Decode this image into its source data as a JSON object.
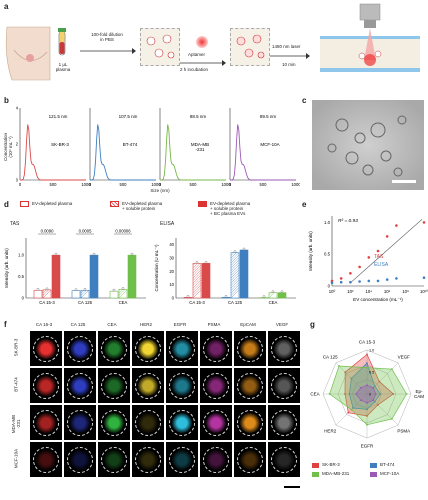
{
  "panels": {
    "a": "a",
    "b": "b",
    "c": "c",
    "d": "d",
    "e": "e",
    "f": "f",
    "g": "g"
  },
  "a": {
    "plasma": "1 μL\nplasma",
    "dilution": "100-fold dilution\nin PBS",
    "aptamer": "Aptamer",
    "incubation": "2 h incubation",
    "laser": "1480 nm laser",
    "time": "10 min"
  },
  "b": {
    "ylabel": "Concentration\n(10⁹ mL⁻¹)",
    "xlabel": "Size (nm)",
    "yticks": [
      "0",
      "2",
      "4"
    ],
    "xticks": [
      "0",
      "500",
      "1000"
    ],
    "series": [
      {
        "name": "SK-BR-3",
        "peak": "121.5 nm",
        "color": "#d94a4a"
      },
      {
        "name": "BT-474",
        "peak": "107.5 nm",
        "color": "#3f7fc0"
      },
      {
        "name": "MDA-MB\n-231",
        "peak": "88.5 nm",
        "color": "#7ab648"
      },
      {
        "name": "MCF-10A",
        "peak": "89.5 nm",
        "color": "#9b59b6"
      }
    ]
  },
  "legend_d": {
    "l1": "EV-depleted plasma",
    "l2": "EV-depleted plasma\n+ soluble protein",
    "l3": "EV-depleted plasma\n+ soluble protein\n+ BC plasma EVs"
  },
  "d_tas": {
    "title": "TAS",
    "ylabel": "Intensity (arb. units)",
    "yticks": [
      "0",
      "0.5",
      "1.0"
    ],
    "categories": [
      "CA 15-3",
      "CA 125",
      "CEA"
    ],
    "pvalues": [
      "0.0090",
      "0.0005",
      "0.00006"
    ]
  },
  "d_elisa": {
    "title": "ELISA",
    "ylabel": "Concentration (U mL⁻¹)",
    "yticks": [
      "0",
      "10",
      "20",
      "30",
      "40"
    ],
    "categories": [
      "CA 15-3",
      "CA 125",
      "CEA"
    ]
  },
  "chart_data": [
    {
      "type": "bar",
      "title": "TAS",
      "ylabel": "Intensity (arb. units)",
      "ylim": [
        0,
        1.4
      ],
      "categories": [
        "CA 15-3",
        "CA 125",
        "CEA"
      ],
      "series": [
        {
          "name": "EV-depleted plasma",
          "values": [
            0.18,
            0.17,
            0.16
          ]
        },
        {
          "name": "EV-depleted plasma + soluble protein",
          "values": [
            0.19,
            0.18,
            0.2
          ]
        },
        {
          "name": "EV-depleted plasma + soluble protein + BC plasma EVs",
          "values": [
            1.0,
            1.0,
            1.0
          ]
        }
      ]
    },
    {
      "type": "bar",
      "title": "ELISA",
      "ylabel": "Concentration (U mL⁻¹)",
      "ylim": [
        0,
        45
      ],
      "categories": [
        "CA 15-3",
        "CA 125",
        "CEA"
      ],
      "series": [
        {
          "name": "EV-depleted plasma",
          "values": [
            0.5,
            0.5,
            0.3
          ]
        },
        {
          "name": "EV-depleted plasma + soluble protein",
          "values": [
            26,
            34,
            4
          ]
        },
        {
          "name": "EV-depleted plasma + soluble protein + BC plasma EVs",
          "values": [
            26,
            36,
            4
          ]
        }
      ]
    },
    {
      "type": "scatter",
      "xlabel": "EV concentration (mL⁻¹)",
      "ylabel": "Intensity (arb. units)",
      "annotation": "R² = 0.93",
      "ylim": [
        0,
        1.1
      ],
      "xscale": "log",
      "series": [
        {
          "name": "TAS",
          "x": [
            1,
            10,
            100,
            1000,
            10000,
            100000,
            1000000,
            10000000,
            10000000000
          ],
          "y": [
            0.08,
            0.12,
            0.2,
            0.3,
            0.45,
            0.55,
            0.78,
            0.95,
            1.0
          ]
        },
        {
          "name": "ELISA",
          "x": [
            1,
            10,
            100,
            1000,
            10000,
            100000,
            1000000,
            10000000,
            10000000000
          ],
          "y": [
            0.05,
            0.06,
            0.06,
            0.07,
            0.08,
            0.08,
            0.1,
            0.12,
            0.13
          ]
        }
      ]
    },
    {
      "type": "radar",
      "axes": [
        "CA 15-3",
        "VEGF",
        "Ep-CAM",
        "PSMA",
        "EGFR",
        "HER2",
        "CEA",
        "CA 125"
      ],
      "rticks": [
        "0",
        "0.5",
        "1.0"
      ],
      "series": [
        {
          "name": "SK-BR-3",
          "values": [
            0.9,
            0.4,
            0.6,
            0.35,
            0.5,
            0.6,
            0.5,
            0.7
          ]
        },
        {
          "name": "BT-474",
          "values": [
            0.7,
            0.25,
            0.3,
            0.25,
            0.35,
            0.45,
            0.4,
            0.5
          ]
        },
        {
          "name": "MDA-MB-231",
          "values": [
            0.6,
            0.8,
            0.9,
            0.8,
            0.7,
            0.5,
            0.85,
            0.9
          ]
        },
        {
          "name": "MCF-10A",
          "values": [
            0.2,
            0.2,
            0.2,
            0.2,
            0.2,
            0.2,
            0.25,
            0.2
          ]
        }
      ]
    }
  ],
  "e": {
    "r2": "R² = 0.93",
    "ylabel": "Intensity (arb. units)",
    "xlabel": "EV concentration (mL⁻¹)",
    "yticks": [
      "0",
      "0.5",
      "1.0"
    ],
    "xticks": [
      "10⁰",
      "10²",
      "10⁴",
      "10⁶",
      "10⁸",
      "10¹⁰"
    ],
    "tas": "TAS",
    "elisa": "ELISA"
  },
  "f": {
    "columns": [
      "CA 15-3",
      "CA 125",
      "CEA",
      "HER2",
      "EGFR",
      "PSMA",
      "EpCAM",
      "VEGF"
    ],
    "rows": [
      "SK-BR-3",
      "BT-474",
      "MDA-MB\n-231",
      "MCF-10A"
    ],
    "colors": [
      "#e83030",
      "#3a4bf0",
      "#39d14a",
      "#f2d532",
      "#30c8e8",
      "#e040c8",
      "#f59a1e",
      "#c0c0c0"
    ],
    "intensity": [
      [
        1.0,
        0.8,
        0.6,
        1.0,
        0.7,
        0.5,
        0.8,
        0.5
      ],
      [
        0.8,
        0.8,
        0.5,
        0.8,
        0.6,
        0.6,
        0.6,
        0.45
      ],
      [
        0.7,
        0.5,
        0.85,
        0.2,
        0.95,
        0.8,
        0.9,
        0.6
      ],
      [
        0.3,
        0.25,
        0.3,
        0.2,
        0.3,
        0.3,
        0.3,
        0.2
      ]
    ]
  },
  "g": {
    "legend": [
      "SK-BR-3",
      "BT-474",
      "MDA-MB-231",
      "MCF-10A"
    ],
    "colors": [
      "#e04040",
      "#3f7fc0",
      "#6fbf4a",
      "#9b59b6"
    ]
  }
}
